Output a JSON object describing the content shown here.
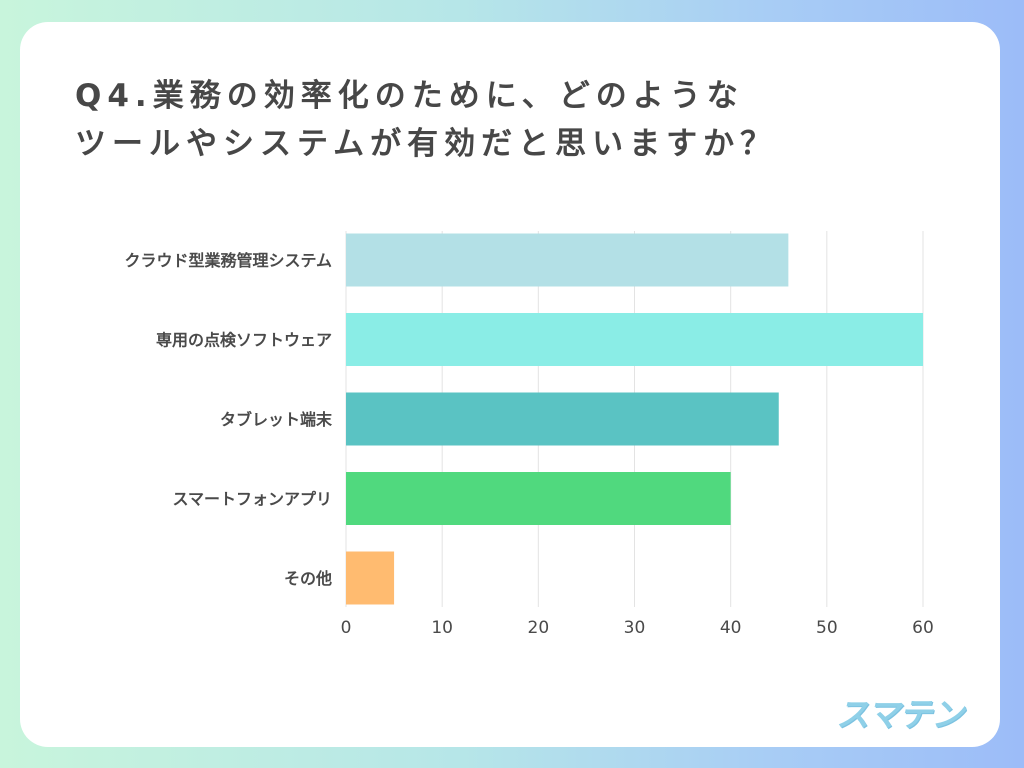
{
  "header": {
    "title_line1": "Q4.業務の効率化のために、どのような",
    "title_line2": "ツールやシステムが有効だと思いますか？"
  },
  "chart_data": {
    "type": "bar",
    "orientation": "horizontal",
    "categories": [
      "クラウド型業務管理システム",
      "専用の点検ソフトウェア",
      "タブレット端末",
      "スマートフォンアプリ",
      "その他"
    ],
    "values": [
      46,
      60,
      45,
      40,
      5
    ],
    "colors": [
      "#b3e0e6",
      "#8aede6",
      "#5ac3c3",
      "#50d97e",
      "#ffbb70"
    ],
    "xticks": [
      0,
      10,
      20,
      30,
      40,
      50,
      60
    ],
    "xlim": [
      0,
      60
    ],
    "grid": true,
    "title": "",
    "xlabel": "",
    "ylabel": ""
  },
  "brand": {
    "logo_text": "スマテン"
  }
}
